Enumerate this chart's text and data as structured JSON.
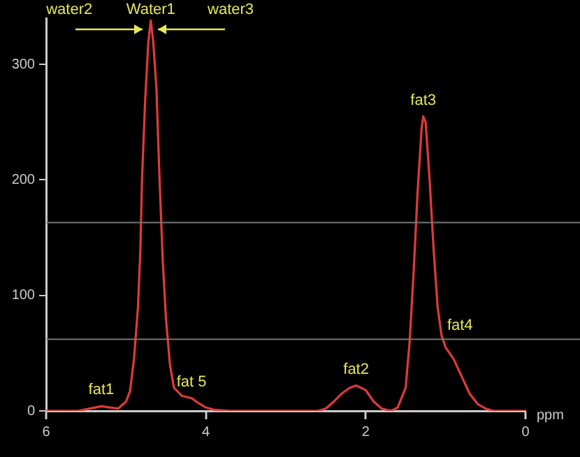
{
  "chart_data": {
    "type": "line",
    "xlabel": "ppm",
    "x": [
      6.0,
      5.6,
      5.45,
      5.31,
      5.2,
      5.1,
      5.0,
      4.95,
      4.9,
      4.85,
      4.82,
      4.8,
      4.76,
      4.72,
      4.69,
      4.66,
      4.62,
      4.58,
      4.54,
      4.5,
      4.45,
      4.4,
      4.3,
      4.18,
      4.1,
      4.0,
      3.9,
      3.7,
      2.6,
      2.5,
      2.4,
      2.3,
      2.2,
      2.12,
      2.0,
      1.9,
      1.8,
      1.68,
      1.6,
      1.5,
      1.45,
      1.4,
      1.35,
      1.3,
      1.28,
      1.25,
      1.2,
      1.15,
      1.1,
      1.05,
      1.0,
      0.9,
      0.8,
      0.7,
      0.6,
      0.5,
      0.4,
      0.0
    ],
    "series": [
      {
        "color": "#e03a3a",
        "values": [
          0,
          0,
          2,
          4,
          3,
          2,
          8,
          17,
          45,
          90,
          140,
          200,
          270,
          320,
          338,
          320,
          280,
          200,
          130,
          80,
          40,
          20,
          13,
          11,
          7,
          3,
          1,
          0,
          0,
          2,
          8,
          15,
          20,
          22,
          18,
          8,
          2,
          0,
          3,
          20,
          60,
          120,
          190,
          245,
          255,
          250,
          200,
          140,
          90,
          65,
          55,
          45,
          30,
          15,
          6,
          2,
          0,
          0
        ]
      }
    ],
    "xlim": [
      6,
      0
    ],
    "xticks": [
      6,
      4,
      2,
      0
    ],
    "ylim": [
      0,
      340
    ],
    "yticks": [
      0,
      100,
      200,
      300
    ],
    "grid": false,
    "legend": false,
    "marker": "none",
    "line_style": "solid",
    "ref_lines": [
      {
        "axis": "y",
        "value": 163,
        "color": "#777777"
      },
      {
        "axis": "y",
        "value": 62,
        "color": "#777777"
      }
    ],
    "annotations": [
      {
        "text": "water2",
        "x": 4.8,
        "y": 330
      },
      {
        "text": "Water1",
        "x": 4.69,
        "y": 338
      },
      {
        "text": "water3",
        "x": 4.6,
        "y": 330
      },
      {
        "text": "fat1",
        "x": 5.31,
        "y": 4
      },
      {
        "text": "fat 5",
        "x": 4.18,
        "y": 11
      },
      {
        "text": "fat2",
        "x": 2.12,
        "y": 22
      },
      {
        "text": "fat3",
        "x": 1.28,
        "y": 255
      },
      {
        "text": "fat4",
        "x": 1.03,
        "y": 60
      }
    ]
  }
}
